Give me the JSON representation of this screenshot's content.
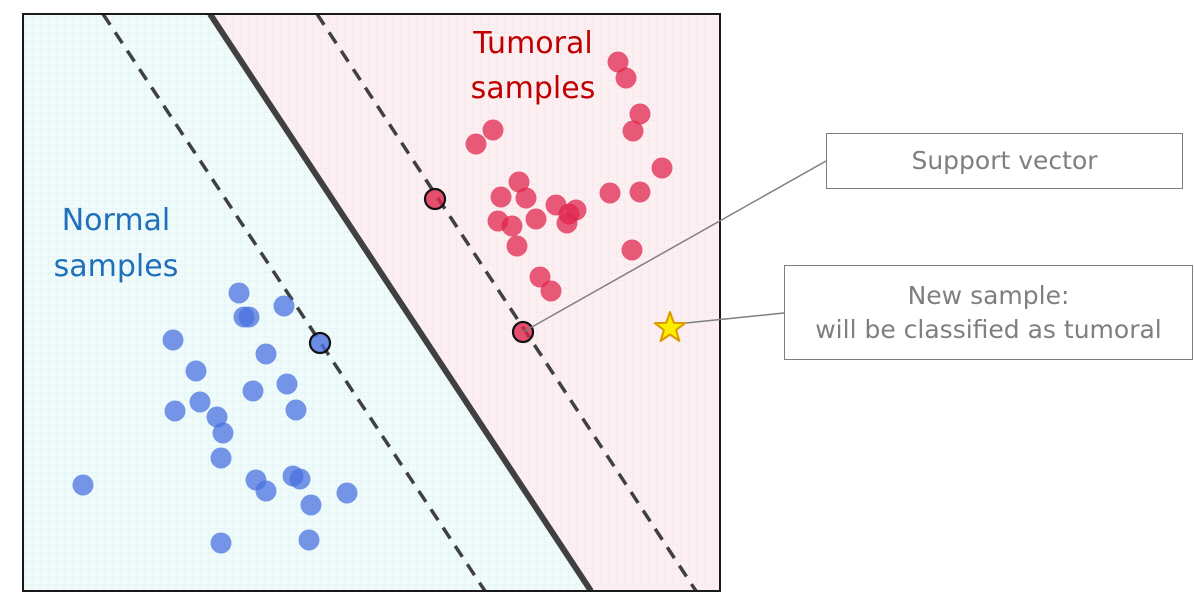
{
  "labels": {
    "tumoral_line1": "Tumoral",
    "tumoral_line2": "samples",
    "normal_line1": "Normal",
    "normal_line2": "samples"
  },
  "callouts": {
    "support_vector": "Support vector",
    "new_sample_line1": "New sample:",
    "new_sample_line2": "will be classified as tumoral"
  },
  "colors": {
    "normal_region": "#eefbfa",
    "tumoral_region": "#fdeff1",
    "normal_point": "#4a72e0",
    "tumoral_point": "#e0264d",
    "normal_text": "#1f6fba",
    "tumoral_text": "#c00000",
    "boundary": "#404040",
    "star_fill": "#ffee00",
    "star_stroke": "#d99a00"
  },
  "icons": [
    "star-icon"
  ]
}
